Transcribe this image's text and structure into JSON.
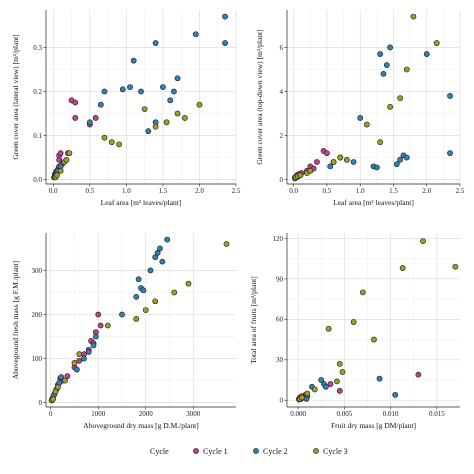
{
  "colors": {
    "cycle1": "#c2418f",
    "cycle2": "#2f83b4",
    "cycle3": "#9aa122"
  },
  "legend": {
    "title": "Cycle",
    "items": [
      {
        "label": "Cycle 1",
        "color": "#c2418f"
      },
      {
        "label": "Cycle 2",
        "color": "#2f83b4"
      },
      {
        "label": "Cycle 3",
        "color": "#9aa122"
      }
    ]
  },
  "chart_data": [
    {
      "type": "scatter",
      "xlabel": "Leaf area [m² leaves/plant]",
      "ylabel": "Green cover area (lateral view) [m²/plant]",
      "xlim": [
        -0.1,
        2.5
      ],
      "ylim": [
        -0.01,
        0.385
      ],
      "xticks": [
        "0.0",
        "0.5",
        "1.0",
        "1.5",
        "2.0",
        "2.5"
      ],
      "xtick_values": [
        0,
        0.5,
        1,
        1.5,
        2,
        2.5
      ],
      "yticks": [
        "0.0",
        "0.1",
        "0.2",
        "0.3"
      ],
      "ytick_values": [
        0,
        0.1,
        0.2,
        0.3
      ],
      "series": [
        {
          "name": "Cycle 1",
          "points": [
            [
              0.01,
              0.005
            ],
            [
              0.02,
              0.012
            ],
            [
              0.04,
              0.018
            ],
            [
              0.05,
              0.02
            ],
            [
              0.07,
              0.025
            ],
            [
              0.08,
              0.045
            ],
            [
              0.08,
              0.055
            ],
            [
              0.1,
              0.06
            ],
            [
              0.12,
              0.035
            ],
            [
              0.2,
              0.06
            ],
            [
              0.25,
              0.18
            ],
            [
              0.3,
              0.175
            ],
            [
              0.3,
              0.14
            ],
            [
              0.5,
              0.125
            ],
            [
              0.58,
              0.14
            ]
          ]
        },
        {
          "name": "Cycle 2",
          "points": [
            [
              0.02,
              0.008
            ],
            [
              0.04,
              0.012
            ],
            [
              0.06,
              0.02
            ],
            [
              0.08,
              0.03
            ],
            [
              0.1,
              0.03
            ],
            [
              0.5,
              0.13
            ],
            [
              0.65,
              0.17
            ],
            [
              0.7,
              0.2
            ],
            [
              0.95,
              0.205
            ],
            [
              1.05,
              0.21
            ],
            [
              1.1,
              0.27
            ],
            [
              1.2,
              0.2
            ],
            [
              1.3,
              0.11
            ],
            [
              1.4,
              0.31
            ],
            [
              1.4,
              0.13
            ],
            [
              1.5,
              0.21
            ],
            [
              1.6,
              0.18
            ],
            [
              1.65,
              0.2
            ],
            [
              1.7,
              0.23
            ],
            [
              1.95,
              0.33
            ],
            [
              2.35,
              0.37
            ],
            [
              2.35,
              0.31
            ]
          ]
        },
        {
          "name": "Cycle 3",
          "points": [
            [
              0.03,
              0.005
            ],
            [
              0.05,
              0.01
            ],
            [
              0.1,
              0.02
            ],
            [
              0.15,
              0.04
            ],
            [
              0.18,
              0.045
            ],
            [
              0.22,
              0.06
            ],
            [
              0.7,
              0.095
            ],
            [
              0.8,
              0.085
            ],
            [
              0.9,
              0.08
            ],
            [
              1.25,
              0.16
            ],
            [
              1.4,
              0.12
            ],
            [
              1.55,
              0.13
            ],
            [
              1.7,
              0.15
            ],
            [
              1.8,
              0.14
            ],
            [
              2.0,
              0.17
            ]
          ]
        }
      ]
    },
    {
      "type": "scatter",
      "xlabel": "Leaf area [m² leaves/plant]",
      "ylabel": "Green cover area (top-down view) [m²/plant]",
      "xlim": [
        -0.1,
        2.5
      ],
      "ylim": [
        -0.2,
        7.7
      ],
      "xticks": [
        "0.0",
        "0.5",
        "1.0",
        "1.5",
        "2.0",
        "2.5"
      ],
      "xtick_values": [
        0,
        0.5,
        1,
        1.5,
        2,
        2.5
      ],
      "yticks": [
        "0",
        "2",
        "4",
        "6"
      ],
      "ytick_values": [
        0,
        2,
        4,
        6
      ],
      "series": [
        {
          "name": "Cycle 1",
          "points": [
            [
              0.02,
              0.1
            ],
            [
              0.05,
              0.2
            ],
            [
              0.08,
              0.25
            ],
            [
              0.12,
              0.3
            ],
            [
              0.2,
              0.4
            ],
            [
              0.25,
              0.6
            ],
            [
              0.3,
              0.5
            ],
            [
              0.35,
              0.8
            ],
            [
              0.45,
              1.3
            ],
            [
              0.5,
              1.2
            ]
          ]
        },
        {
          "name": "Cycle 2",
          "points": [
            [
              0.02,
              0.05
            ],
            [
              0.04,
              0.1
            ],
            [
              0.07,
              0.15
            ],
            [
              0.1,
              0.2
            ],
            [
              0.55,
              0.6
            ],
            [
              0.6,
              0.8
            ],
            [
              0.7,
              1.0
            ],
            [
              0.9,
              0.8
            ],
            [
              1.0,
              2.8
            ],
            [
              1.2,
              0.6
            ],
            [
              1.25,
              0.55
            ],
            [
              1.3,
              5.7
            ],
            [
              1.35,
              4.8
            ],
            [
              1.4,
              5.2
            ],
            [
              1.45,
              6.0
            ],
            [
              1.55,
              0.7
            ],
            [
              1.6,
              0.9
            ],
            [
              1.65,
              1.1
            ],
            [
              1.7,
              1.0
            ],
            [
              2.0,
              5.7
            ],
            [
              2.35,
              3.8
            ],
            [
              2.35,
              1.2
            ]
          ]
        },
        {
          "name": "Cycle 3",
          "points": [
            [
              0.03,
              0.1
            ],
            [
              0.06,
              0.15
            ],
            [
              0.1,
              0.2
            ],
            [
              0.2,
              0.3
            ],
            [
              0.25,
              0.4
            ],
            [
              0.6,
              0.8
            ],
            [
              0.7,
              1.0
            ],
            [
              0.8,
              0.9
            ],
            [
              1.1,
              2.5
            ],
            [
              1.3,
              1.7
            ],
            [
              1.45,
              3.3
            ],
            [
              1.6,
              3.7
            ],
            [
              1.7,
              5.0
            ],
            [
              1.8,
              7.4
            ],
            [
              2.15,
              6.2
            ]
          ]
        }
      ]
    },
    {
      "type": "scatter",
      "xlabel": "Aboveground dry mass [g D.M./plant]",
      "ylabel": "Aboveground fresh mass [g F.M./plant]",
      "xlim": [
        -100,
        3900
      ],
      "ylim": [
        -10,
        385
      ],
      "xticks": [
        "0",
        "1000",
        "2000",
        "3000"
      ],
      "xtick_values": [
        0,
        1000,
        2000,
        3000
      ],
      "yticks": [
        "0",
        "100",
        "200",
        "300"
      ],
      "ytick_values": [
        0,
        100,
        200,
        300
      ],
      "series": [
        {
          "name": "Cycle 1",
          "points": [
            [
              20,
              5
            ],
            [
              40,
              10
            ],
            [
              80,
              20
            ],
            [
              150,
              40
            ],
            [
              200,
              55
            ],
            [
              250,
              50
            ],
            [
              350,
              60
            ],
            [
              500,
              80
            ],
            [
              600,
              95
            ],
            [
              700,
              110
            ],
            [
              800,
              120
            ],
            [
              850,
              140
            ],
            [
              900,
              135
            ],
            [
              950,
              160
            ],
            [
              1000,
              200
            ],
            [
              1050,
              175
            ]
          ]
        },
        {
          "name": "Cycle 2",
          "points": [
            [
              30,
              8
            ],
            [
              60,
              15
            ],
            [
              120,
              30
            ],
            [
              180,
              45
            ],
            [
              220,
              58
            ],
            [
              550,
              75
            ],
            [
              700,
              100
            ],
            [
              800,
              115
            ],
            [
              900,
              130
            ],
            [
              950,
              150
            ],
            [
              1500,
              200
            ],
            [
              1800,
              240
            ],
            [
              1850,
              280
            ],
            [
              1900,
              260
            ],
            [
              1950,
              255
            ],
            [
              2100,
              300
            ],
            [
              2200,
              330
            ],
            [
              2250,
              340
            ],
            [
              2300,
              350
            ],
            [
              2350,
              320
            ],
            [
              2450,
              370
            ]
          ]
        },
        {
          "name": "Cycle 3",
          "points": [
            [
              20,
              5
            ],
            [
              50,
              8
            ],
            [
              100,
              25
            ],
            [
              150,
              35
            ],
            [
              300,
              50
            ],
            [
              500,
              90
            ],
            [
              600,
              110
            ],
            [
              1200,
              175
            ],
            [
              1800,
              190
            ],
            [
              2000,
              210
            ],
            [
              2200,
              230
            ],
            [
              2600,
              250
            ],
            [
              2900,
              270
            ],
            [
              3700,
              360
            ]
          ]
        }
      ]
    },
    {
      "type": "scatter",
      "xlabel": "Fruit dry mass [g DM/plant]",
      "ylabel": "Total area of fruits [m²/plant]",
      "xlim": [
        -0.0012,
        0.0175
      ],
      "ylim": [
        -5,
        124
      ],
      "xticks": [
        "0.000",
        "0.005",
        "0.010",
        "0.015"
      ],
      "xtick_values": [
        0,
        0.005,
        0.01,
        0.015
      ],
      "yticks": [
        "0",
        "30",
        "60",
        "90",
        "120"
      ],
      "ytick_values": [
        0,
        30,
        60,
        90,
        120
      ],
      "series": [
        {
          "name": "Cycle 1",
          "points": [
            [
              0.0001,
              1
            ],
            [
              0.0002,
              2
            ],
            [
              0.0004,
              3
            ],
            [
              0.0006,
              2
            ],
            [
              0.0008,
              4
            ],
            [
              0.001,
              3
            ],
            [
              0.0035,
              12
            ],
            [
              0.0045,
              7
            ],
            [
              0.013,
              19
            ]
          ]
        },
        {
          "name": "Cycle 2",
          "points": [
            [
              0.0001,
              0.5
            ],
            [
              0.0003,
              1
            ],
            [
              0.0006,
              2
            ],
            [
              0.0009,
              1
            ],
            [
              0.0015,
              10
            ],
            [
              0.0025,
              15
            ],
            [
              0.0028,
              12
            ],
            [
              0.003,
              10
            ],
            [
              0.0088,
              16
            ],
            [
              0.0105,
              4
            ]
          ]
        },
        {
          "name": "Cycle 3",
          "points": [
            [
              0.0002,
              1
            ],
            [
              0.0004,
              2
            ],
            [
              0.001,
              5
            ],
            [
              0.0018,
              8
            ],
            [
              0.0033,
              53
            ],
            [
              0.0042,
              14
            ],
            [
              0.0045,
              27
            ],
            [
              0.0048,
              21
            ],
            [
              0.006,
              58
            ],
            [
              0.007,
              80
            ],
            [
              0.0082,
              45
            ],
            [
              0.0113,
              98
            ],
            [
              0.0135,
              118
            ],
            [
              0.017,
              99
            ]
          ]
        }
      ]
    }
  ]
}
